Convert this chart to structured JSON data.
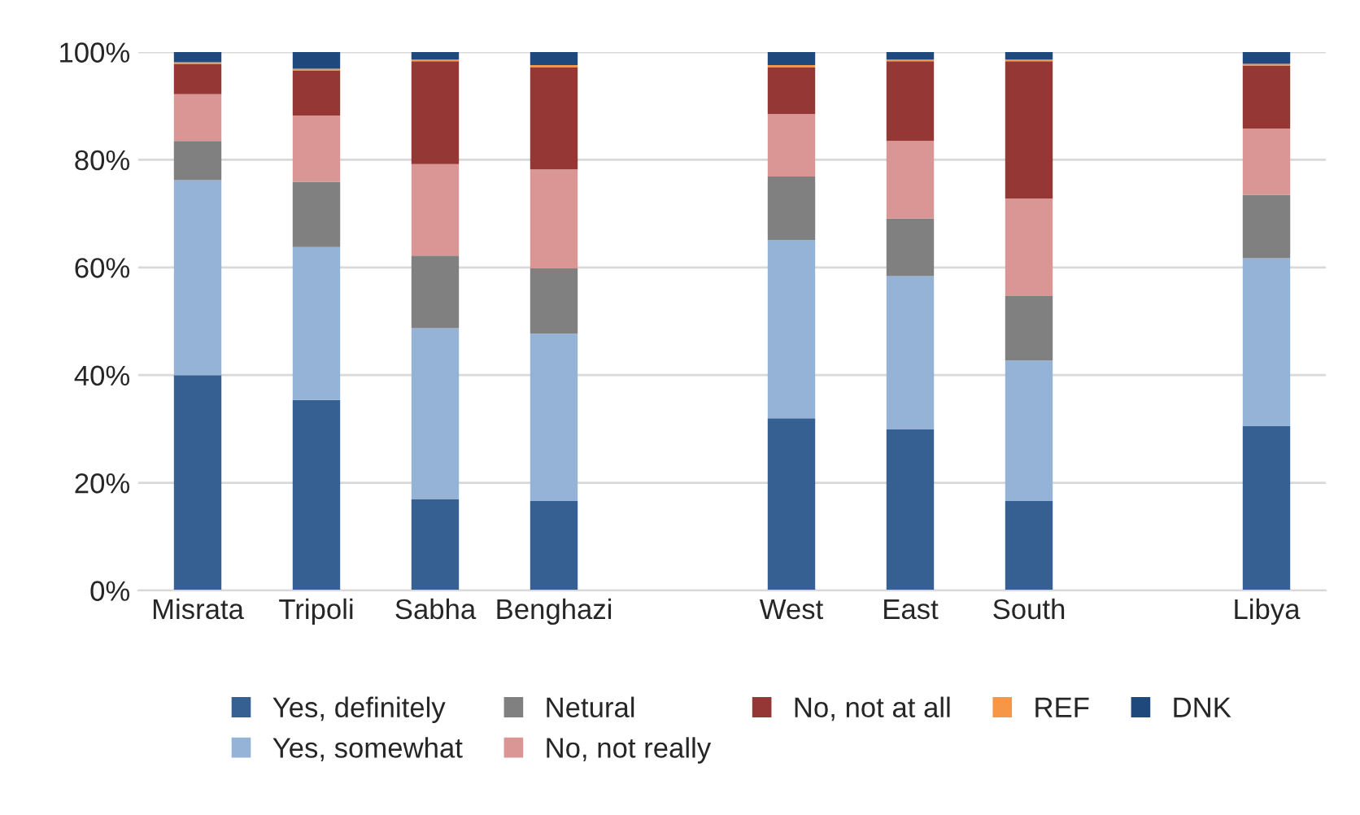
{
  "chart_data": {
    "type": "bar",
    "stacked": true,
    "categories": [
      "Misrata",
      "Tripoli",
      "Sabha",
      "Benghazi",
      null,
      "West",
      "East",
      "South",
      null,
      "Libya"
    ],
    "series": [
      {
        "name": "Yes, definitely",
        "color": "#376092",
        "values": [
          40.0,
          35.4,
          17.0,
          16.6,
          null,
          32.0,
          30.0,
          16.6,
          null,
          30.6
        ]
      },
      {
        "name": "Yes, somewhat",
        "color": "#95b3d7",
        "values": [
          36.2,
          28.4,
          31.7,
          31.1,
          null,
          33.1,
          28.4,
          26.1,
          null,
          31.1
        ]
      },
      {
        "name": "Netural",
        "color": "#808080",
        "values": [
          7.3,
          12.1,
          13.5,
          12.1,
          null,
          11.8,
          10.7,
          12.0,
          null,
          11.8
        ]
      },
      {
        "name": "No, not really",
        "color": "#da9694",
        "values": [
          8.7,
          12.3,
          17.0,
          18.4,
          null,
          11.6,
          14.4,
          18.1,
          null,
          12.3
        ]
      },
      {
        "name": "No, not at all",
        "color": "#953735",
        "values": [
          5.6,
          8.4,
          19.1,
          19.0,
          null,
          8.7,
          14.8,
          25.5,
          null,
          11.7
        ]
      },
      {
        "name": "REF",
        "color": "#f79646",
        "values": [
          0.3,
          0.3,
          0.3,
          0.4,
          null,
          0.4,
          0.3,
          0.3,
          null,
          0.3
        ]
      },
      {
        "name": "DNK",
        "color": "#1f497d",
        "values": [
          1.9,
          3.1,
          1.4,
          2.4,
          null,
          2.4,
          1.4,
          1.4,
          null,
          2.2
        ]
      }
    ],
    "ylim": [
      0,
      100
    ],
    "yticks": [
      {
        "value": 0,
        "label": "0%"
      },
      {
        "value": 20,
        "label": "20%"
      },
      {
        "value": 40,
        "label": "40%"
      },
      {
        "value": 60,
        "label": "60%"
      },
      {
        "value": 80,
        "label": "80%"
      },
      {
        "value": 100,
        "label": "100%"
      }
    ],
    "grid": "y",
    "legend": "bottom"
  }
}
